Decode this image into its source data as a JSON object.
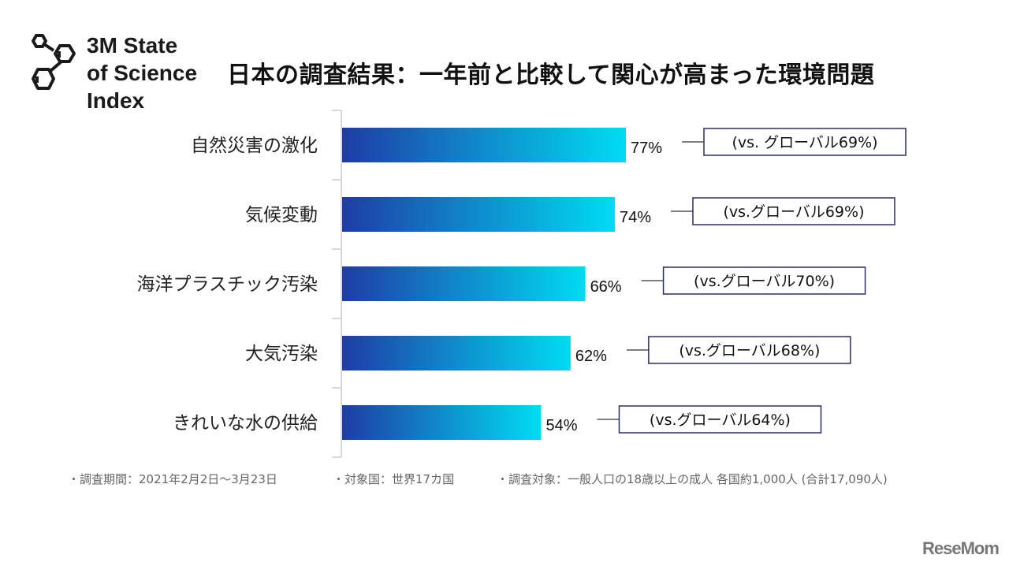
{
  "logo": {
    "text_lines": [
      "3M State",
      "of Science",
      "Index"
    ]
  },
  "title": "日本の調査結果：一年前と比較して関心が高まった環境問題",
  "chart_data": {
    "type": "bar",
    "orientation": "horizontal",
    "categories": [
      "自然災害の激化",
      "気候変動",
      "海洋プラスチック汚染",
      "大気汚染",
      "きれいな水の供給"
    ],
    "values": [
      77,
      74,
      66,
      62,
      54
    ],
    "value_labels": [
      "77%",
      "74%",
      "66%",
      "62%",
      "54%"
    ],
    "global_labels": [
      "(vs. グローバル69%)",
      "(vs.グローバル69%)",
      "(vs.グローバル70%)",
      "(vs.グローバル68%)",
      "(vs.グローバル64%)"
    ],
    "global_values": [
      69,
      69,
      70,
      68,
      64
    ],
    "unit": "%",
    "xlim": [
      0,
      100
    ],
    "grid": false,
    "colors": {
      "gradient_start": "#1e3ca6",
      "gradient_end": "#00dcf2",
      "box_border": "#2b2d5c"
    }
  },
  "footnotes": [
    "・調査期間：2021年2月2日〜3月23日",
    "・対象国：世界17カ国",
    "・調査対象：一般人口の18歳以上の成人 各国約1,000人 (合計17,090人)"
  ],
  "brand": "ReseMom"
}
